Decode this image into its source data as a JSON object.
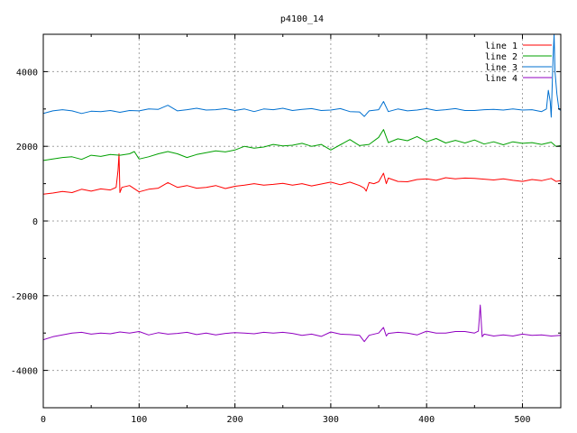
{
  "chart_data": {
    "type": "line",
    "title": "p4100_14",
    "xlabel": "",
    "ylabel": "",
    "xlim": [
      0,
      540
    ],
    "ylim": [
      -5000,
      5000
    ],
    "xticks": [
      0,
      100,
      200,
      300,
      400,
      500
    ],
    "yticks": [
      -4000,
      -2000,
      0,
      2000,
      4000
    ],
    "grid": true,
    "legend_position": "top-right",
    "series": [
      {
        "name": "line 1",
        "color": "#ff0000",
        "points": [
          [
            0,
            720
          ],
          [
            10,
            750
          ],
          [
            20,
            790
          ],
          [
            30,
            760
          ],
          [
            40,
            850
          ],
          [
            50,
            800
          ],
          [
            60,
            860
          ],
          [
            70,
            830
          ],
          [
            76,
            900
          ],
          [
            78,
            1350
          ],
          [
            79,
            1800
          ],
          [
            80,
            760
          ],
          [
            82,
            900
          ],
          [
            90,
            950
          ],
          [
            100,
            780
          ],
          [
            110,
            850
          ],
          [
            120,
            880
          ],
          [
            130,
            1030
          ],
          [
            140,
            900
          ],
          [
            150,
            950
          ],
          [
            160,
            880
          ],
          [
            170,
            900
          ],
          [
            180,
            950
          ],
          [
            190,
            870
          ],
          [
            200,
            930
          ],
          [
            210,
            960
          ],
          [
            220,
            1000
          ],
          [
            230,
            960
          ],
          [
            240,
            980
          ],
          [
            250,
            1010
          ],
          [
            260,
            960
          ],
          [
            270,
            1000
          ],
          [
            280,
            940
          ],
          [
            290,
            990
          ],
          [
            300,
            1040
          ],
          [
            310,
            970
          ],
          [
            320,
            1040
          ],
          [
            330,
            950
          ],
          [
            335,
            880
          ],
          [
            337,
            800
          ],
          [
            340,
            1030
          ],
          [
            345,
            1000
          ],
          [
            350,
            1050
          ],
          [
            355,
            1280
          ],
          [
            358,
            1000
          ],
          [
            360,
            1150
          ],
          [
            370,
            1060
          ],
          [
            380,
            1050
          ],
          [
            390,
            1110
          ],
          [
            400,
            1130
          ],
          [
            410,
            1090
          ],
          [
            420,
            1160
          ],
          [
            430,
            1130
          ],
          [
            440,
            1150
          ],
          [
            450,
            1140
          ],
          [
            460,
            1120
          ],
          [
            470,
            1100
          ],
          [
            480,
            1130
          ],
          [
            490,
            1090
          ],
          [
            500,
            1060
          ],
          [
            510,
            1110
          ],
          [
            520,
            1080
          ],
          [
            530,
            1140
          ],
          [
            535,
            1060
          ],
          [
            540,
            1080
          ]
        ]
      },
      {
        "name": "line 2",
        "color": "#00a000",
        "points": [
          [
            0,
            1620
          ],
          [
            10,
            1660
          ],
          [
            20,
            1700
          ],
          [
            30,
            1720
          ],
          [
            40,
            1650
          ],
          [
            50,
            1760
          ],
          [
            60,
            1730
          ],
          [
            70,
            1780
          ],
          [
            80,
            1760
          ],
          [
            90,
            1800
          ],
          [
            95,
            1860
          ],
          [
            100,
            1660
          ],
          [
            110,
            1720
          ],
          [
            120,
            1800
          ],
          [
            130,
            1860
          ],
          [
            140,
            1800
          ],
          [
            150,
            1700
          ],
          [
            160,
            1780
          ],
          [
            170,
            1830
          ],
          [
            180,
            1880
          ],
          [
            190,
            1850
          ],
          [
            200,
            1900
          ],
          [
            210,
            2000
          ],
          [
            220,
            1950
          ],
          [
            230,
            1980
          ],
          [
            240,
            2050
          ],
          [
            250,
            2010
          ],
          [
            260,
            2030
          ],
          [
            270,
            2080
          ],
          [
            280,
            2000
          ],
          [
            290,
            2050
          ],
          [
            300,
            1900
          ],
          [
            310,
            2040
          ],
          [
            320,
            2180
          ],
          [
            330,
            2020
          ],
          [
            340,
            2050
          ],
          [
            350,
            2240
          ],
          [
            355,
            2450
          ],
          [
            360,
            2100
          ],
          [
            370,
            2200
          ],
          [
            380,
            2150
          ],
          [
            390,
            2260
          ],
          [
            400,
            2120
          ],
          [
            410,
            2210
          ],
          [
            420,
            2090
          ],
          [
            430,
            2160
          ],
          [
            440,
            2090
          ],
          [
            450,
            2170
          ],
          [
            460,
            2060
          ],
          [
            470,
            2120
          ],
          [
            480,
            2040
          ],
          [
            490,
            2120
          ],
          [
            500,
            2080
          ],
          [
            510,
            2100
          ],
          [
            520,
            2050
          ],
          [
            530,
            2110
          ],
          [
            535,
            2000
          ],
          [
            540,
            2020
          ]
        ]
      },
      {
        "name": "line 3",
        "color": "#0070d0",
        "points": [
          [
            0,
            2880
          ],
          [
            10,
            2950
          ],
          [
            20,
            2980
          ],
          [
            30,
            2950
          ],
          [
            40,
            2880
          ],
          [
            50,
            2940
          ],
          [
            60,
            2930
          ],
          [
            70,
            2960
          ],
          [
            80,
            2910
          ],
          [
            90,
            2960
          ],
          [
            100,
            2950
          ],
          [
            110,
            3000
          ],
          [
            120,
            2990
          ],
          [
            130,
            3100
          ],
          [
            140,
            2950
          ],
          [
            150,
            2980
          ],
          [
            160,
            3020
          ],
          [
            170,
            2970
          ],
          [
            180,
            2980
          ],
          [
            190,
            3010
          ],
          [
            200,
            2960
          ],
          [
            210,
            3000
          ],
          [
            220,
            2930
          ],
          [
            230,
            3000
          ],
          [
            240,
            2980
          ],
          [
            250,
            3020
          ],
          [
            260,
            2960
          ],
          [
            270,
            2990
          ],
          [
            280,
            3010
          ],
          [
            290,
            2960
          ],
          [
            300,
            2970
          ],
          [
            310,
            3010
          ],
          [
            320,
            2930
          ],
          [
            330,
            2920
          ],
          [
            335,
            2800
          ],
          [
            340,
            2950
          ],
          [
            350,
            2980
          ],
          [
            355,
            3200
          ],
          [
            360,
            2930
          ],
          [
            370,
            3000
          ],
          [
            380,
            2950
          ],
          [
            390,
            2970
          ],
          [
            400,
            3010
          ],
          [
            410,
            2960
          ],
          [
            420,
            2980
          ],
          [
            430,
            3010
          ],
          [
            440,
            2960
          ],
          [
            450,
            2960
          ],
          [
            460,
            2980
          ],
          [
            470,
            2990
          ],
          [
            480,
            2970
          ],
          [
            490,
            3000
          ],
          [
            500,
            2970
          ],
          [
            510,
            2980
          ],
          [
            520,
            2930
          ],
          [
            525,
            3000
          ],
          [
            527,
            3500
          ],
          [
            529,
            3200
          ],
          [
            530,
            2780
          ],
          [
            532,
            4400
          ],
          [
            533,
            5000
          ],
          [
            534,
            4000
          ],
          [
            536,
            3400
          ],
          [
            538,
            3000
          ],
          [
            540,
            2960
          ]
        ]
      },
      {
        "name": "line 4",
        "color": "#9000c0",
        "points": [
          [
            0,
            -3180
          ],
          [
            10,
            -3100
          ],
          [
            20,
            -3050
          ],
          [
            30,
            -3000
          ],
          [
            40,
            -2980
          ],
          [
            50,
            -3030
          ],
          [
            60,
            -3000
          ],
          [
            70,
            -3020
          ],
          [
            80,
            -2970
          ],
          [
            90,
            -3000
          ],
          [
            100,
            -2960
          ],
          [
            110,
            -3050
          ],
          [
            120,
            -2990
          ],
          [
            130,
            -3030
          ],
          [
            140,
            -3010
          ],
          [
            150,
            -2980
          ],
          [
            160,
            -3040
          ],
          [
            170,
            -3000
          ],
          [
            180,
            -3050
          ],
          [
            190,
            -3010
          ],
          [
            200,
            -2990
          ],
          [
            210,
            -3000
          ],
          [
            220,
            -3020
          ],
          [
            230,
            -2980
          ],
          [
            240,
            -3000
          ],
          [
            250,
            -2980
          ],
          [
            260,
            -3010
          ],
          [
            270,
            -3060
          ],
          [
            280,
            -3030
          ],
          [
            290,
            -3090
          ],
          [
            300,
            -2970
          ],
          [
            310,
            -3030
          ],
          [
            320,
            -3040
          ],
          [
            330,
            -3060
          ],
          [
            335,
            -3230
          ],
          [
            340,
            -3060
          ],
          [
            350,
            -3000
          ],
          [
            355,
            -2850
          ],
          [
            358,
            -3080
          ],
          [
            360,
            -3010
          ],
          [
            370,
            -2980
          ],
          [
            380,
            -3000
          ],
          [
            390,
            -3050
          ],
          [
            400,
            -2950
          ],
          [
            410,
            -3000
          ],
          [
            420,
            -3000
          ],
          [
            430,
            -2960
          ],
          [
            440,
            -2960
          ],
          [
            450,
            -3000
          ],
          [
            454,
            -2950
          ],
          [
            456,
            -2250
          ],
          [
            457,
            -2700
          ],
          [
            458,
            -3100
          ],
          [
            460,
            -3030
          ],
          [
            470,
            -3080
          ],
          [
            480,
            -3050
          ],
          [
            490,
            -3080
          ],
          [
            500,
            -3030
          ],
          [
            510,
            -3060
          ],
          [
            520,
            -3050
          ],
          [
            530,
            -3080
          ],
          [
            540,
            -3060
          ]
        ]
      }
    ]
  }
}
